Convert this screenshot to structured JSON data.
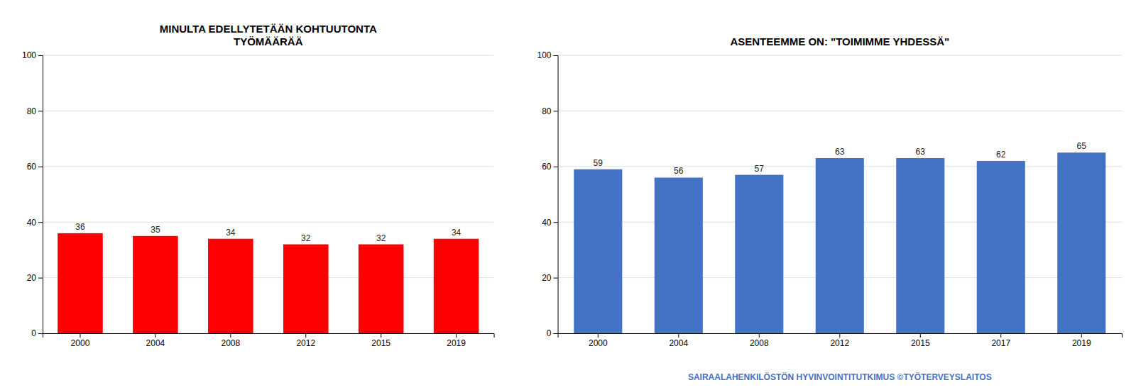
{
  "chart_data": [
    {
      "type": "bar",
      "title": "MINULTA EDELLYTETÄÄN KOHTUUTONTA\nTYÖMÄÄRÄÄ",
      "categories": [
        "2000",
        "2004",
        "2008",
        "2012",
        "2015",
        "2019"
      ],
      "values": [
        36,
        35,
        34,
        32,
        32,
        34
      ],
      "color": "#FF0000",
      "ylim": [
        0,
        100
      ],
      "yticks": [
        0,
        20,
        40,
        60,
        80,
        100
      ],
      "grid": true,
      "data_labels": true
    },
    {
      "type": "bar",
      "title": "ASENTEEMME ON: \"TOIMIMME YHDESSÄ\"",
      "categories": [
        "2000",
        "2004",
        "2008",
        "2012",
        "2015",
        "2017",
        "2019"
      ],
      "values": [
        59,
        56,
        57,
        63,
        63,
        62,
        65
      ],
      "color": "#4472C4",
      "ylim": [
        0,
        100
      ],
      "yticks": [
        0,
        20,
        40,
        60,
        80,
        100
      ],
      "grid": true,
      "data_labels": true,
      "annotations": [
        {
          "text": "SAIRAALAHENKILÖSTÖN HYVINVOINTITUTKIMUS ©TYÖTERVEYSLAITOS",
          "color": "#4472C4"
        }
      ]
    }
  ]
}
